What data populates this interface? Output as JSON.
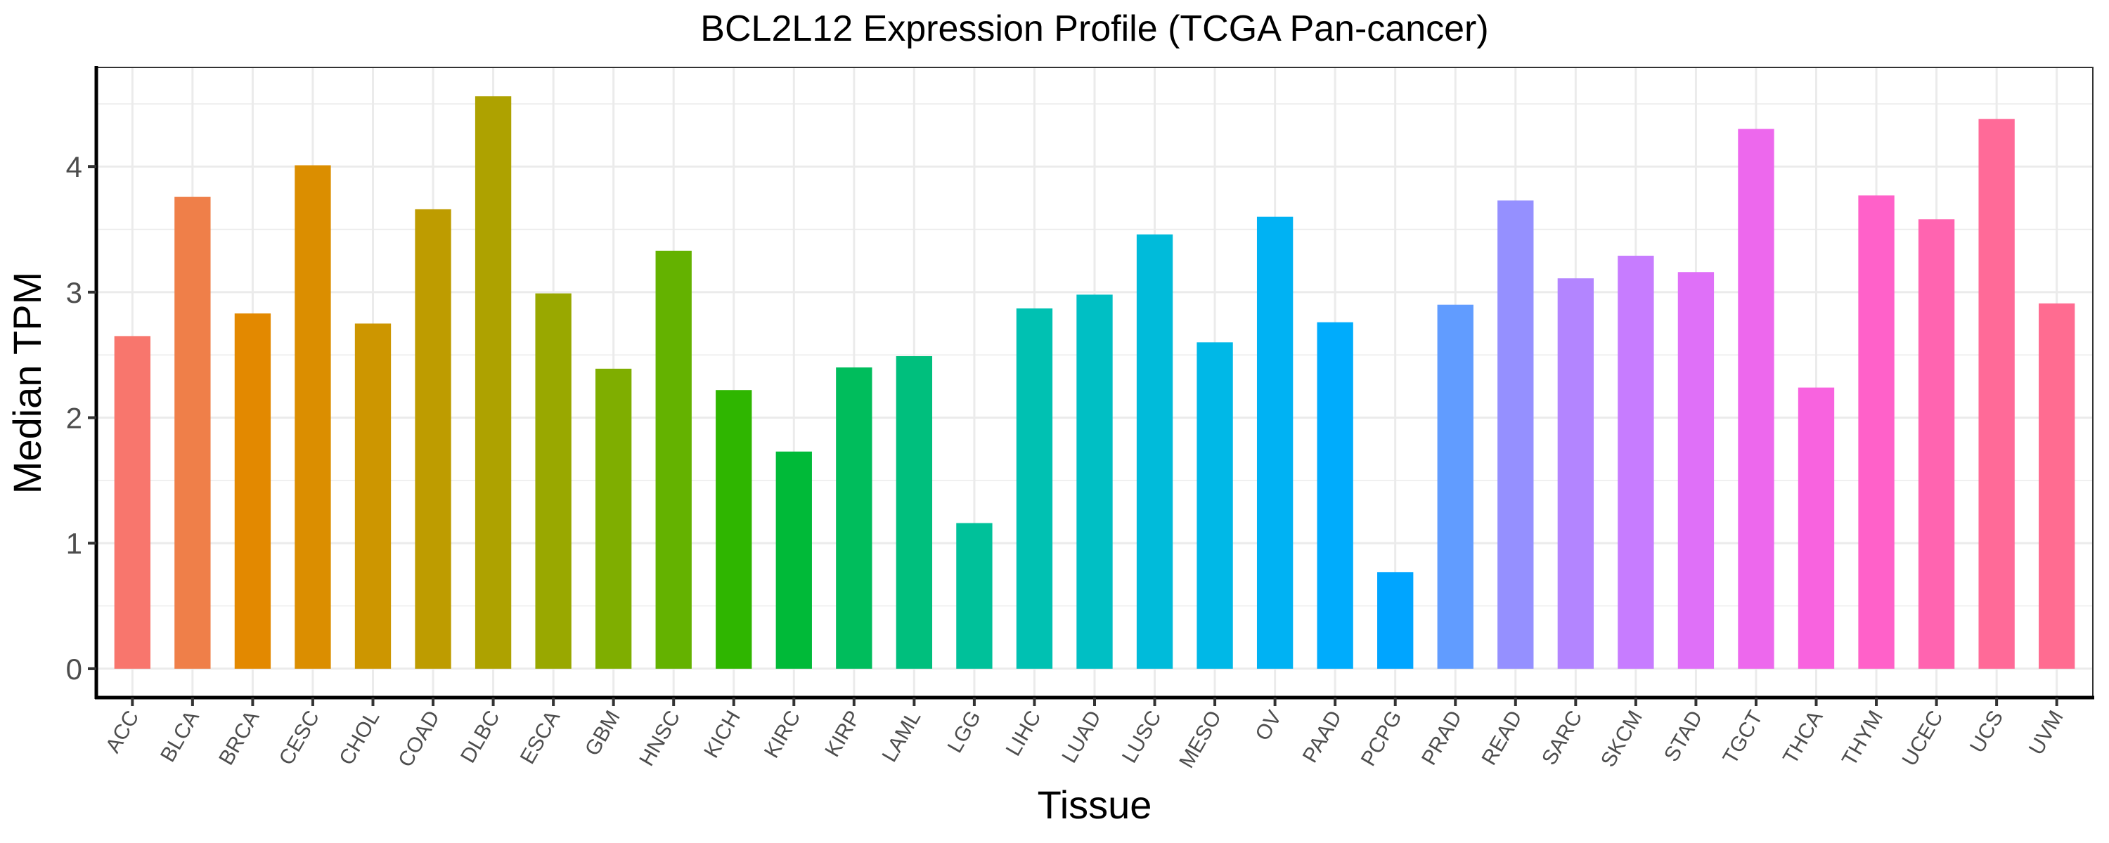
{
  "chart_data": {
    "type": "bar",
    "title": "BCL2L12 Expression Profile (TCGA Pan-cancer)",
    "xlabel": "Tissue",
    "ylabel": "Median TPM",
    "ylim": [
      -0.23,
      4.79
    ],
    "yticks": [
      0,
      1,
      2,
      3,
      4
    ],
    "grid": true,
    "legend": "none",
    "categories": [
      "ACC",
      "BLCA",
      "BRCA",
      "CESC",
      "CHOL",
      "COAD",
      "DLBC",
      "ESCA",
      "GBM",
      "HNSC",
      "KICH",
      "KIRC",
      "KIRP",
      "LAML",
      "LGG",
      "LIHC",
      "LUAD",
      "LUSC",
      "MESO",
      "OV",
      "PAAD",
      "PCPG",
      "PRAD",
      "READ",
      "SARC",
      "SKCM",
      "STAD",
      "TGCT",
      "THCA",
      "THYM",
      "UCEC",
      "UCS",
      "UVM"
    ],
    "values": [
      2.65,
      3.76,
      2.83,
      4.01,
      2.75,
      3.66,
      4.56,
      2.99,
      2.39,
      3.33,
      2.22,
      1.73,
      2.4,
      2.49,
      1.16,
      2.87,
      2.98,
      3.46,
      2.6,
      3.6,
      2.76,
      0.77,
      2.9,
      3.73,
      3.11,
      3.29,
      3.16,
      4.3,
      2.24,
      3.77,
      3.58,
      4.38,
      2.91
    ],
    "colors": [
      "#F8766D",
      "#EF7F49",
      "#E38900",
      "#DB8E00",
      "#CD9600",
      "#BE9C00",
      "#AEA200",
      "#99A800",
      "#7FAE00",
      "#64B200",
      "#2FB600",
      "#00BA38",
      "#00BD5C",
      "#00BF7D",
      "#00C19A",
      "#00C1B2",
      "#00BFC4",
      "#00BBDA",
      "#00B8E7",
      "#00B2F3",
      "#00ACFC",
      "#00A5FF",
      "#619CFF",
      "#9590FF",
      "#B385FF",
      "#C77CFF",
      "#DF70F8",
      "#ED68ED",
      "#F863DF",
      "#FF61C9",
      "#FF64B0",
      "#FF6A98",
      "#FF6C91"
    ]
  }
}
